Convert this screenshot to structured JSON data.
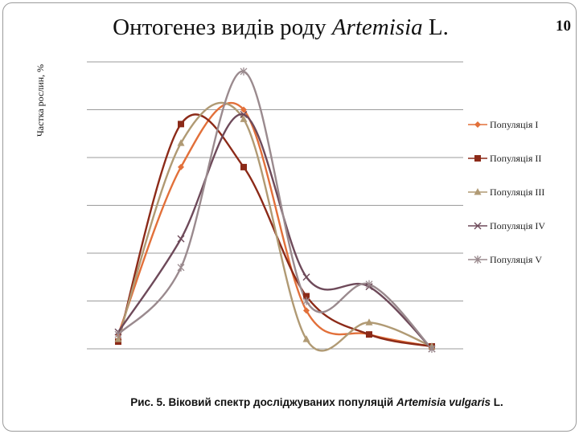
{
  "slide": {
    "title_main": "Онтогенез видів роду ",
    "title_italic": "Artemisia",
    "title_suffix": " L.",
    "page_number": "10",
    "caption_main": "Рис. 5. Віковий спектр досліджуваних популяцій ",
    "caption_italic": "Artemisia vulgaris",
    "caption_suffix": " L."
  },
  "chart_data": {
    "type": "line",
    "smooth": true,
    "title": "Онтогенез видів роду Artemisia L.",
    "xlabel": "",
    "ylabel": "Частка рослин, %",
    "categories": [
      "",
      "",
      "",
      "",
      "",
      ""
    ],
    "ylim": [
      0,
      60
    ],
    "grid": true,
    "legend_position": "right",
    "series": [
      {
        "name": "Популяція І",
        "color": "#e2703a",
        "marker": "diamond",
        "values": [
          3,
          38,
          50,
          8,
          3,
          0.5
        ]
      },
      {
        "name": "Популяція ІІ",
        "color": "#8c2a18",
        "marker": "square",
        "values": [
          1.5,
          47,
          38,
          11,
          3,
          0.5
        ]
      },
      {
        "name": "Популяція ІІІ",
        "color": "#b09a74",
        "marker": "triangle",
        "values": [
          2,
          43,
          48,
          2,
          5.5,
          0.5
        ]
      },
      {
        "name": "Популяція IV",
        "color": "#6e4a5a",
        "marker": "x",
        "values": [
          3.5,
          23,
          49,
          15,
          13,
          0
        ]
      },
      {
        "name": "Популяція V",
        "color": "#9a8a8e",
        "marker": "asterisk",
        "values": [
          3,
          17,
          58,
          10,
          13.5,
          0
        ]
      }
    ]
  }
}
